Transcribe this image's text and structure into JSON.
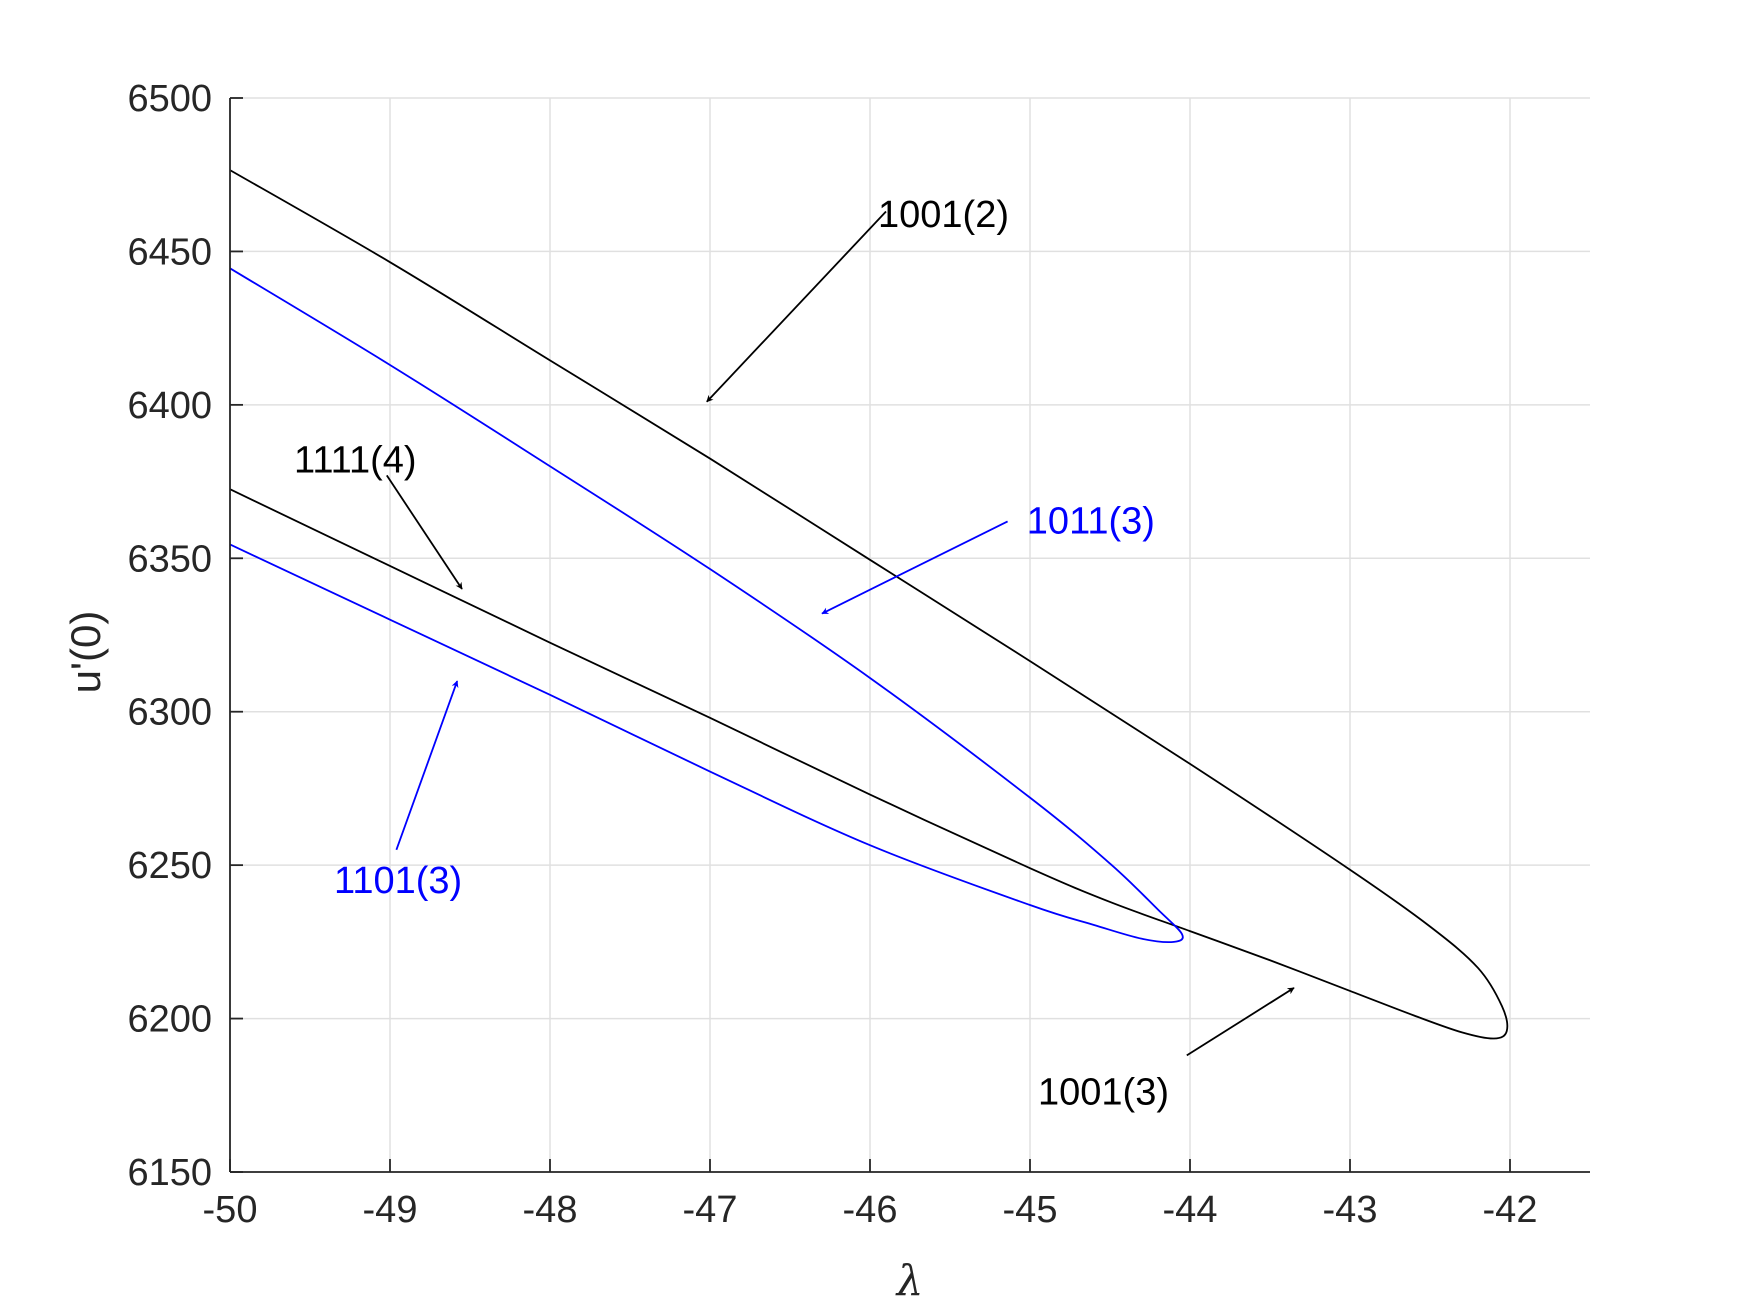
{
  "chart_data": {
    "type": "line",
    "title": "",
    "xlabel": "λ",
    "ylabel": "u'(0)",
    "xlim": [
      -50,
      -41.5
    ],
    "ylim": [
      6150,
      6500
    ],
    "xticks": [
      -50,
      -49,
      -48,
      -47,
      -46,
      -45,
      -44,
      -43,
      -42
    ],
    "xtick_labels": [
      "-50",
      "-49",
      "-48",
      "-47",
      "-46",
      "-45",
      "-44",
      "-43",
      "-42"
    ],
    "yticks": [
      6150,
      6200,
      6250,
      6300,
      6350,
      6400,
      6450,
      6500
    ],
    "ytick_labels": [
      "6150",
      "6200",
      "6250",
      "6300",
      "6350",
      "6400",
      "6450",
      "6500"
    ],
    "grid": true,
    "series": [
      {
        "color": "#000000",
        "x": [
          -50,
          -49,
          -48,
          -47,
          -46,
          -45,
          -44,
          -43,
          -42.5,
          -42.2,
          -42.05,
          -42.02,
          -42.1,
          -42.3,
          -42.6,
          -43,
          -43.5,
          -44,
          -44.5,
          -45,
          -46,
          -47,
          -48,
          -49,
          -50
        ],
        "y": [
          6476.5,
          6446.5,
          6414.5,
          6382.5,
          6349.5,
          6316.5,
          6283,
          6248.5,
          6230,
          6216.5,
          6204,
          6196,
          6193.5,
          6195.5,
          6201,
          6209,
          6219,
          6228.5,
          6238,
          6249,
          6273,
          6298,
          6322.5,
          6347.5,
          6372.5
        ]
      },
      {
        "color": "#0000ff",
        "x": [
          -50,
          -49,
          -48,
          -47,
          -46,
          -45,
          -44.5,
          -44.2,
          -44.05,
          -44.1,
          -44.3,
          -44.6,
          -45,
          -46,
          -47,
          -48,
          -49,
          -50
        ],
        "y": [
          6444.5,
          6413,
          6380,
          6346.5,
          6311,
          6272,
          6250.5,
          6235.5,
          6227.5,
          6225,
          6226,
          6230.5,
          6237,
          6256.5,
          6280.5,
          6305.5,
          6330,
          6354.5
        ]
      }
    ],
    "annotations": [
      {
        "text": "1001(2)",
        "color": "#000000",
        "text_x": -45.95,
        "text_y": 6458,
        "tail_x": -45.9,
        "tail_y": 6463,
        "head_x": -47.02,
        "head_y": 6401
      },
      {
        "text": "1111(4)",
        "color": "#000000",
        "text_x": -49.6,
        "text_y": 6378,
        "tail_x": -49.02,
        "tail_y": 6377,
        "head_x": -48.55,
        "head_y": 6340
      },
      {
        "text": "1011(3)",
        "color": "#0000ff",
        "text_x": -45.02,
        "text_y": 6358,
        "tail_x": -45.14,
        "tail_y": 6362,
        "head_x": -46.3,
        "head_y": 6332
      },
      {
        "text": "1101(3)",
        "color": "#0000ff",
        "text_x": -49.35,
        "text_y": 6241,
        "tail_x": -48.96,
        "tail_y": 6255,
        "head_x": -48.58,
        "head_y": 6310
      },
      {
        "text": "1001(3)",
        "color": "#000000",
        "text_x": -44.95,
        "text_y": 6172,
        "tail_x": -44.02,
        "tail_y": 6188,
        "head_x": -43.35,
        "head_y": 6210
      }
    ]
  }
}
